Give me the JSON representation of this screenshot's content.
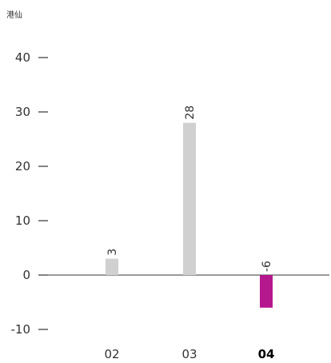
{
  "chart_data": {
    "type": "bar",
    "unit_label": "港仙",
    "categories": [
      "02",
      "03",
      "04"
    ],
    "values": [
      3,
      28,
      -6
    ],
    "data_labels": [
      "3",
      "28",
      "-6"
    ],
    "highlight_category": "04",
    "colors": {
      "normal": "#d0d0d0",
      "highlight": "#b5178d",
      "axis": "#333333"
    },
    "yticks": [
      {
        "value": 40,
        "label": "40"
      },
      {
        "value": 30,
        "label": "30"
      },
      {
        "value": 20,
        "label": "20"
      },
      {
        "value": 10,
        "label": "10"
      },
      {
        "value": 0,
        "label": "0"
      },
      {
        "value": -10,
        "label": "-10"
      }
    ],
    "ylim": [
      -10,
      40
    ],
    "grid": false,
    "legend": "none"
  }
}
